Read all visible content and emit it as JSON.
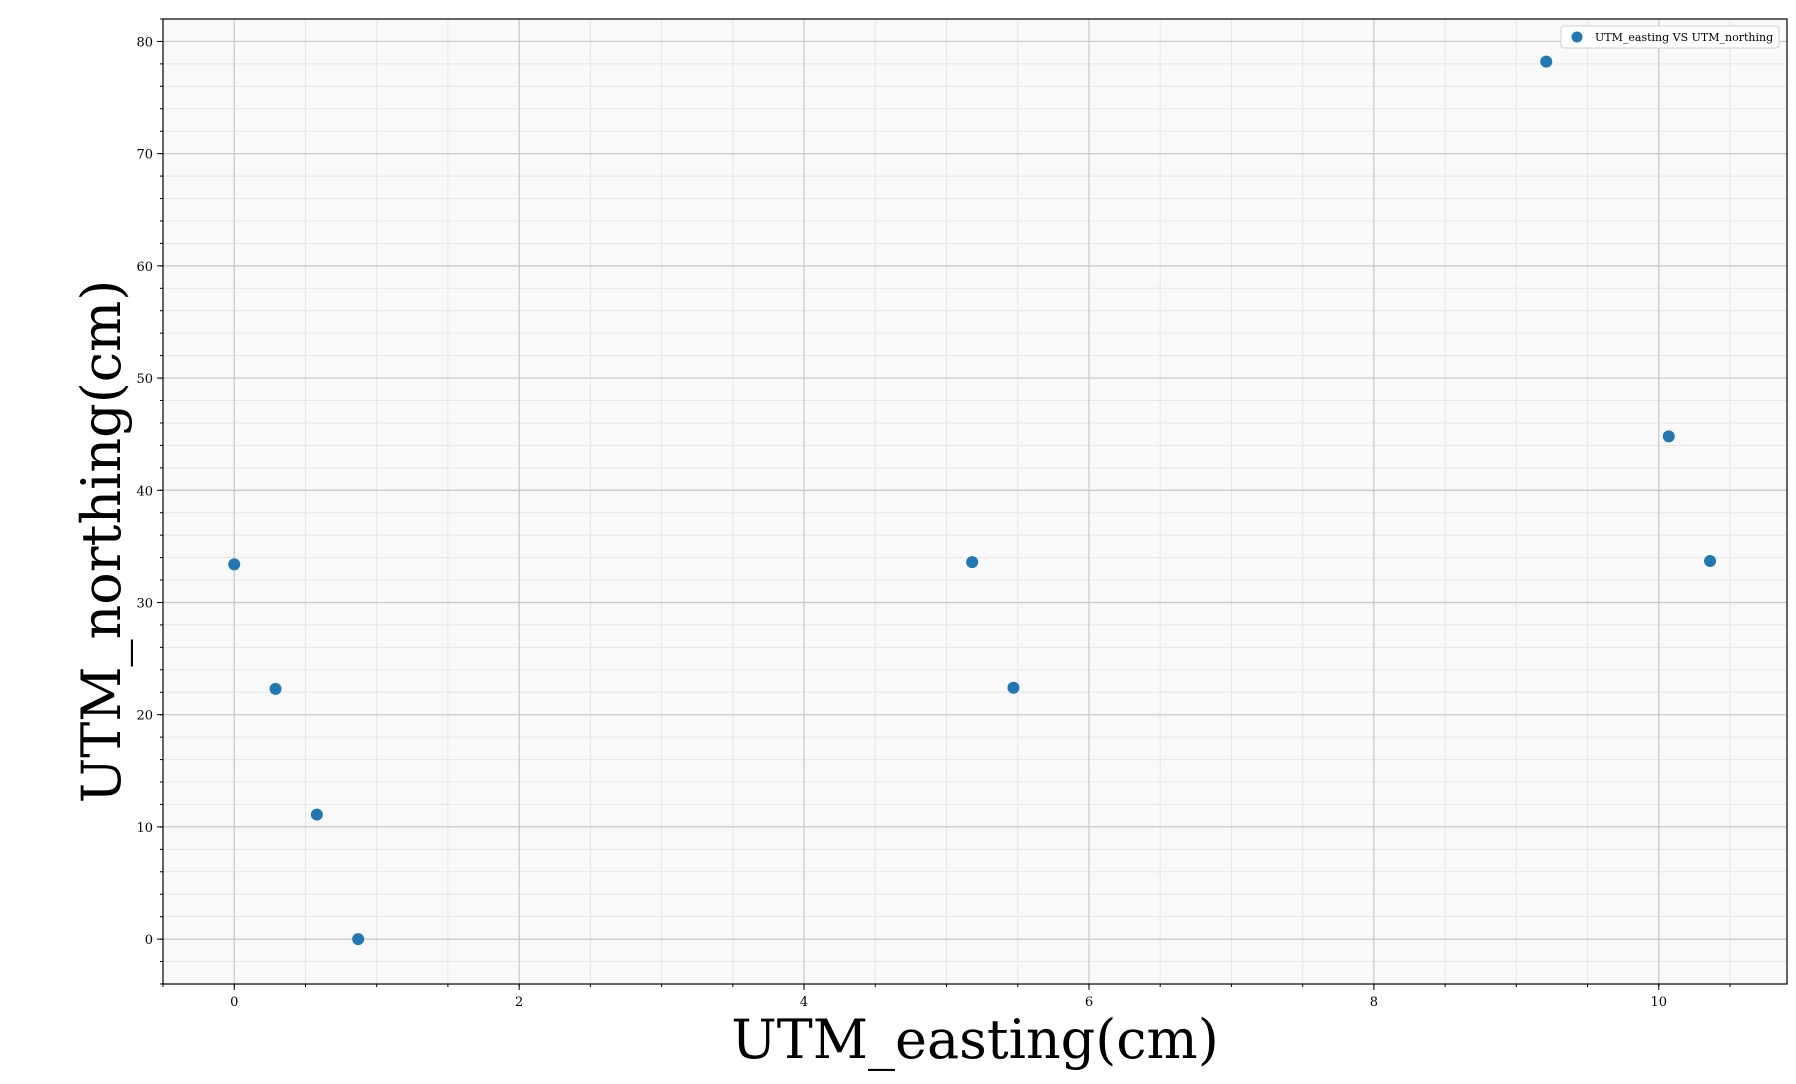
{
  "chart_data": {
    "type": "scatter",
    "title": "",
    "xlabel": "UTM_easting(cm)",
    "ylabel": "UTM_northing(cm)",
    "xlim": [
      -0.5,
      10.9
    ],
    "ylim": [
      -4,
      82
    ],
    "xticks": [
      0,
      2,
      4,
      6,
      8,
      10
    ],
    "yticks": [
      0,
      10,
      20,
      30,
      40,
      50,
      60,
      70,
      80
    ],
    "xtick_labels": [
      "0",
      "2",
      "4",
      "6",
      "8",
      "10"
    ],
    "ytick_labels": [
      "0",
      "10",
      "20",
      "30",
      "40",
      "50",
      "60",
      "70",
      "80"
    ],
    "grid": true,
    "minor_grid": true,
    "legend_position": "top-right",
    "series": [
      {
        "name": "UTM_easting VS UTM_northing",
        "color": "#1f77b4",
        "points": [
          {
            "x": 0.0,
            "y": 33.4
          },
          {
            "x": 0.29,
            "y": 22.3
          },
          {
            "x": 0.58,
            "y": 11.1
          },
          {
            "x": 0.87,
            "y": 0.0
          },
          {
            "x": 5.18,
            "y": 33.6
          },
          {
            "x": 5.47,
            "y": 22.4
          },
          {
            "x": 9.21,
            "y": 78.2
          },
          {
            "x": 10.07,
            "y": 44.8
          },
          {
            "x": 10.36,
            "y": 33.7
          }
        ]
      }
    ]
  }
}
